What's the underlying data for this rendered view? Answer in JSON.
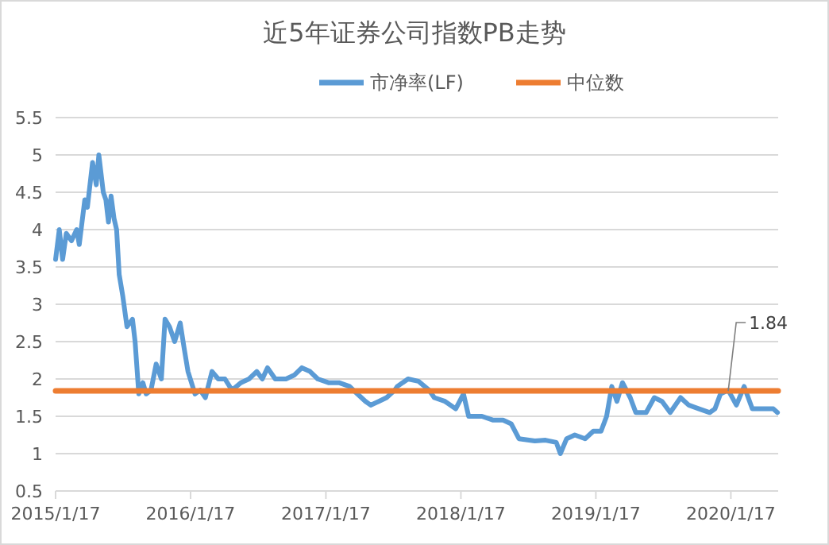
{
  "chart_data": {
    "type": "line",
    "title": "近5年证券公司指数PB走势",
    "xlim": [
      "2015-01-17",
      "2020-05-24"
    ],
    "xticks": [
      {
        "value": "2015-01-17",
        "label": "2015/1/17"
      },
      {
        "value": "2016-01-17",
        "label": "2016/1/17"
      },
      {
        "value": "2017-01-17",
        "label": "2017/1/17"
      },
      {
        "value": "2018-01-17",
        "label": "2018/1/17"
      },
      {
        "value": "2019-01-17",
        "label": "2019/1/17"
      },
      {
        "value": "2020-01-17",
        "label": "2020/1/17"
      }
    ],
    "ylim": [
      0.5,
      5.5
    ],
    "yticks": [
      0.5,
      1,
      1.5,
      2,
      2.5,
      3,
      3.5,
      4,
      4.5,
      5,
      5.5
    ],
    "grid": "y",
    "legend": "top",
    "line_style": "solid",
    "marker": "none",
    "annotations": [
      {
        "text": "1.84",
        "x": "2020-01-10",
        "y": 1.84
      }
    ],
    "series": [
      {
        "name": "市净率(LF)",
        "color": "#5b9bd5",
        "x": [
          "2015-01-17",
          "2015-01-27",
          "2015-02-05",
          "2015-02-15",
          "2015-03-01",
          "2015-03-15",
          "2015-03-22",
          "2015-04-06",
          "2015-04-13",
          "2015-04-20",
          "2015-04-27",
          "2015-05-07",
          "2015-05-14",
          "2015-05-26",
          "2015-06-02",
          "2015-06-09",
          "2015-06-16",
          "2015-06-24",
          "2015-07-01",
          "2015-07-08",
          "2015-07-18",
          "2015-07-29",
          "2015-08-13",
          "2015-08-20",
          "2015-08-30",
          "2015-09-10",
          "2015-09-19",
          "2015-10-02",
          "2015-10-16",
          "2015-10-30",
          "2015-11-09",
          "2015-11-21",
          "2015-12-05",
          "2015-12-20",
          "2015-12-31",
          "2016-01-10",
          "2016-01-29",
          "2016-02-12",
          "2016-02-26",
          "2016-03-15",
          "2016-04-01",
          "2016-04-19",
          "2016-05-08",
          "2016-06-01",
          "2016-06-23",
          "2016-07-14",
          "2016-07-29",
          "2016-08-12",
          "2016-09-02",
          "2016-10-01",
          "2016-10-23",
          "2016-11-13",
          "2016-12-05",
          "2016-12-26",
          "2017-01-24",
          "2017-02-21",
          "2017-03-22",
          "2017-04-12",
          "2017-05-04",
          "2017-05-18",
          "2017-06-09",
          "2017-06-30",
          "2017-07-22",
          "2017-07-29",
          "2017-08-27",
          "2017-09-24",
          "2017-10-23",
          "2017-11-06",
          "2017-12-05",
          "2018-01-03",
          "2018-01-24",
          "2018-02-07",
          "2018-03-15",
          "2018-04-13",
          "2018-05-11",
          "2018-06-02",
          "2018-06-23",
          "2018-08-05",
          "2018-09-03",
          "2018-10-02",
          "2018-10-13",
          "2018-10-30",
          "2018-11-21",
          "2018-12-19",
          "2019-01-10",
          "2019-01-31",
          "2019-02-15",
          "2019-03-01",
          "2019-03-15",
          "2019-03-30",
          "2019-04-20",
          "2019-05-05",
          "2019-06-02",
          "2019-06-24",
          "2019-07-15",
          "2019-08-06",
          "2019-09-03",
          "2019-09-25",
          "2019-10-23",
          "2019-11-21",
          "2019-12-05",
          "2019-12-20",
          "2020-01-10",
          "2020-02-01",
          "2020-02-22",
          "2020-03-15",
          "2020-04-12",
          "2020-05-11",
          "2020-05-22"
        ],
        "values": [
          3.6,
          4.0,
          3.6,
          3.95,
          3.85,
          4.0,
          3.8,
          4.4,
          4.3,
          4.6,
          4.9,
          4.6,
          5.0,
          4.5,
          4.4,
          4.1,
          4.45,
          4.15,
          4.0,
          3.4,
          3.1,
          2.7,
          2.8,
          2.5,
          1.8,
          1.95,
          1.8,
          1.85,
          2.2,
          2.0,
          2.8,
          2.7,
          2.5,
          2.75,
          2.4,
          2.1,
          1.8,
          1.85,
          1.75,
          2.1,
          2.0,
          2.0,
          1.85,
          1.95,
          2.0,
          2.1,
          2.0,
          2.15,
          2.0,
          2.0,
          2.05,
          2.15,
          2.1,
          2.0,
          1.95,
          1.95,
          1.9,
          1.8,
          1.7,
          1.65,
          1.7,
          1.75,
          1.85,
          1.9,
          2.0,
          1.97,
          1.85,
          1.75,
          1.7,
          1.6,
          1.8,
          1.5,
          1.5,
          1.45,
          1.45,
          1.4,
          1.2,
          1.17,
          1.18,
          1.15,
          1.0,
          1.2,
          1.25,
          1.2,
          1.3,
          1.3,
          1.5,
          1.9,
          1.7,
          1.95,
          1.75,
          1.55,
          1.55,
          1.75,
          1.7,
          1.55,
          1.75,
          1.65,
          1.6,
          1.55,
          1.6,
          1.8,
          1.85,
          1.65,
          1.9,
          1.6,
          1.6,
          1.6,
          1.55
        ]
      },
      {
        "name": "中位数",
        "color": "#ed7d31",
        "x": [
          "2015-01-17",
          "2020-05-24"
        ],
        "values": [
          1.84,
          1.84
        ]
      }
    ]
  }
}
